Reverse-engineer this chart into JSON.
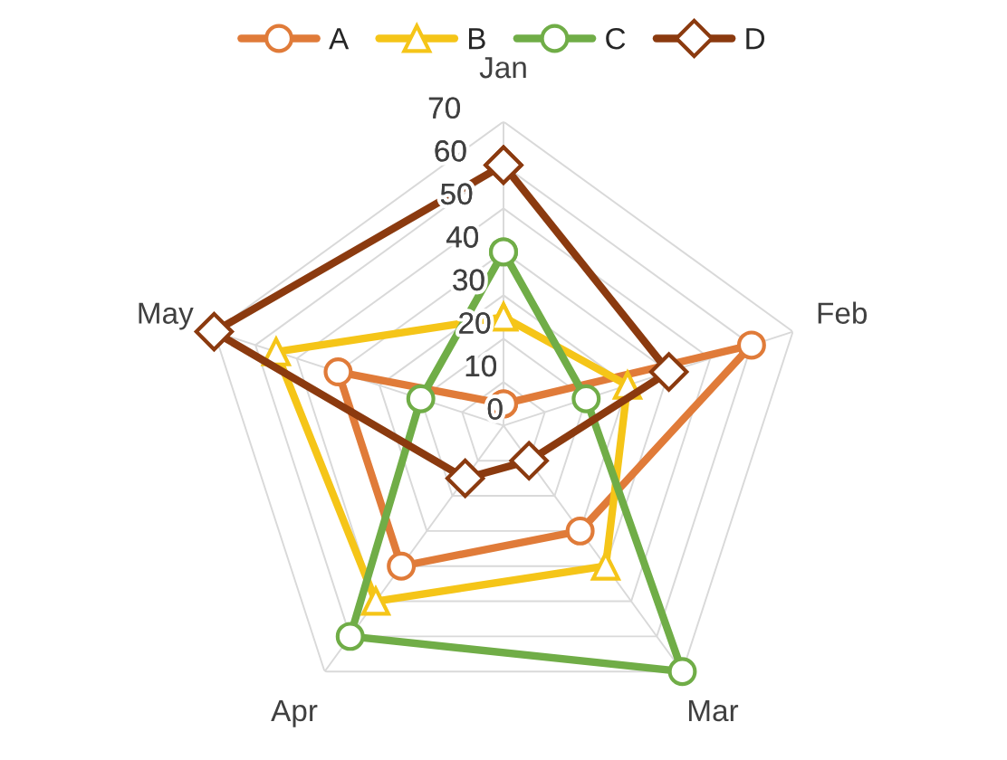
{
  "chart_data": {
    "type": "radar",
    "categories": [
      "Jan",
      "Feb",
      "Mar",
      "Apr",
      "May"
    ],
    "series": [
      {
        "name": "A",
        "color": "#e07b39",
        "marker": "circle",
        "values": [
          5,
          60,
          30,
          40,
          40
        ]
      },
      {
        "name": "B",
        "color": "#f5c518",
        "marker": "triangle",
        "values": [
          25,
          30,
          40,
          50,
          55
        ]
      },
      {
        "name": "C",
        "color": "#70ad47",
        "marker": "circle",
        "values": [
          40,
          20,
          70,
          60,
          20
        ]
      },
      {
        "name": "D",
        "color": "#8b3a0f",
        "marker": "diamond",
        "values": [
          60,
          40,
          10,
          15,
          70
        ]
      }
    ],
    "ylim": [
      0,
      70
    ],
    "yticks": [
      0,
      10,
      20,
      30,
      40,
      50,
      60,
      70
    ],
    "grid": true,
    "legend": "top",
    "line_style": "solid"
  }
}
